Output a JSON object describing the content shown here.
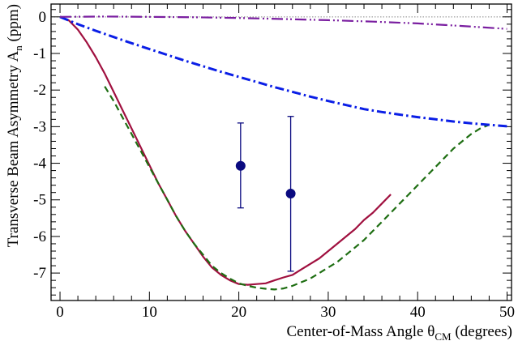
{
  "chart_data": {
    "type": "line",
    "title": "",
    "xlabel": "Center-of-Mass Angle θ",
    "xlabel_sub": "CM",
    "xlabel_suffix": " (degrees)",
    "ylabel": "Transverse Beam Asymmetry A",
    "ylabel_sub": "n",
    "ylabel_suffix": " (ppm)",
    "xlim": [
      -1,
      50.5
    ],
    "ylim": [
      -7.75,
      0.35
    ],
    "x_ticks": [
      0,
      10,
      20,
      30,
      40,
      50
    ],
    "x_tick_labels": [
      "0",
      "10",
      "20",
      "30",
      "40",
      "50"
    ],
    "y_ticks": [
      0,
      -1,
      -2,
      -3,
      -4,
      -5,
      -6,
      -7
    ],
    "y_tick_labels": [
      "0",
      "-1",
      "-2",
      "-3",
      "-4",
      "-5",
      "-6",
      "-7"
    ],
    "x_minor_step": 2,
    "y_minor_step": 0.2,
    "grid": false,
    "legend": "none",
    "zero_line": {
      "y": 0,
      "style": "dotted",
      "color": "#888888"
    },
    "series": [
      {
        "style": "solid",
        "color": "#a0103f",
        "x": [
          0,
          1,
          2,
          3,
          4,
          5,
          6,
          7,
          8,
          9,
          10,
          11,
          12,
          13,
          14,
          15,
          16,
          17,
          18,
          19,
          20,
          21,
          22,
          23,
          24,
          25,
          26,
          27,
          28,
          29,
          30,
          31,
          32,
          33,
          34,
          35,
          36,
          37
        ],
        "y": [
          0,
          -0.1,
          -0.35,
          -0.7,
          -1.1,
          -1.55,
          -2.05,
          -2.55,
          -3.05,
          -3.55,
          -4.05,
          -4.55,
          -5.0,
          -5.45,
          -5.85,
          -6.2,
          -6.55,
          -6.85,
          -7.05,
          -7.2,
          -7.3,
          -7.32,
          -7.3,
          -7.28,
          -7.2,
          -7.12,
          -7.05,
          -6.9,
          -6.75,
          -6.6,
          -6.4,
          -6.2,
          -6.0,
          -5.8,
          -5.55,
          -5.35,
          -5.1,
          -4.85
        ]
      },
      {
        "style": "dashed",
        "color": "#1e6e12",
        "x": [
          5,
          6,
          7,
          8,
          9,
          10,
          11,
          12,
          13,
          14,
          15,
          16,
          17,
          18,
          19,
          20,
          21,
          22,
          23,
          24,
          25,
          26,
          27,
          28,
          29,
          30,
          31,
          32,
          33,
          34,
          35,
          36,
          37,
          38,
          39,
          40,
          41,
          42,
          43,
          44,
          45,
          46,
          47,
          48
        ],
        "y": [
          -1.9,
          -2.3,
          -2.75,
          -3.2,
          -3.65,
          -4.1,
          -4.55,
          -5.0,
          -5.45,
          -5.85,
          -6.2,
          -6.5,
          -6.8,
          -7.0,
          -7.15,
          -7.28,
          -7.35,
          -7.4,
          -7.43,
          -7.45,
          -7.42,
          -7.35,
          -7.25,
          -7.15,
          -7.0,
          -6.85,
          -6.7,
          -6.5,
          -6.3,
          -6.1,
          -5.85,
          -5.6,
          -5.35,
          -5.1,
          -4.85,
          -4.6,
          -4.35,
          -4.1,
          -3.85,
          -3.6,
          -3.4,
          -3.2,
          -3.05,
          -2.95
        ]
      },
      {
        "style": "dashdot",
        "color": "#0a1ee6",
        "x": [
          0,
          1,
          2,
          4,
          6,
          8,
          10,
          12,
          14,
          16,
          18,
          20,
          22,
          24,
          26,
          28,
          30,
          32,
          34,
          36,
          38,
          40,
          42,
          44,
          46,
          48,
          50
        ],
        "y": [
          0,
          -0.1,
          -0.2,
          -0.38,
          -0.55,
          -0.72,
          -0.88,
          -1.04,
          -1.2,
          -1.35,
          -1.5,
          -1.64,
          -1.78,
          -1.92,
          -2.05,
          -2.18,
          -2.3,
          -2.41,
          -2.52,
          -2.6,
          -2.67,
          -2.74,
          -2.8,
          -2.86,
          -2.91,
          -2.95,
          -2.99
        ]
      },
      {
        "style": "dashdotdot",
        "color": "#7a1ea0",
        "x": [
          0,
          5,
          10,
          15,
          20,
          25,
          30,
          35,
          40,
          45,
          50
        ],
        "y": [
          0,
          0.01,
          0.0,
          -0.01,
          -0.03,
          -0.06,
          -0.09,
          -0.13,
          -0.18,
          -0.25,
          -0.33
        ]
      }
    ],
    "points": [
      {
        "x": 20.2,
        "y": -4.07,
        "err_low": -5.22,
        "err_high": -2.9,
        "color": "#0a0a80"
      },
      {
        "x": 25.8,
        "y": -4.83,
        "err_low": -6.95,
        "err_high": -2.72,
        "color": "#0a0a80"
      }
    ]
  }
}
